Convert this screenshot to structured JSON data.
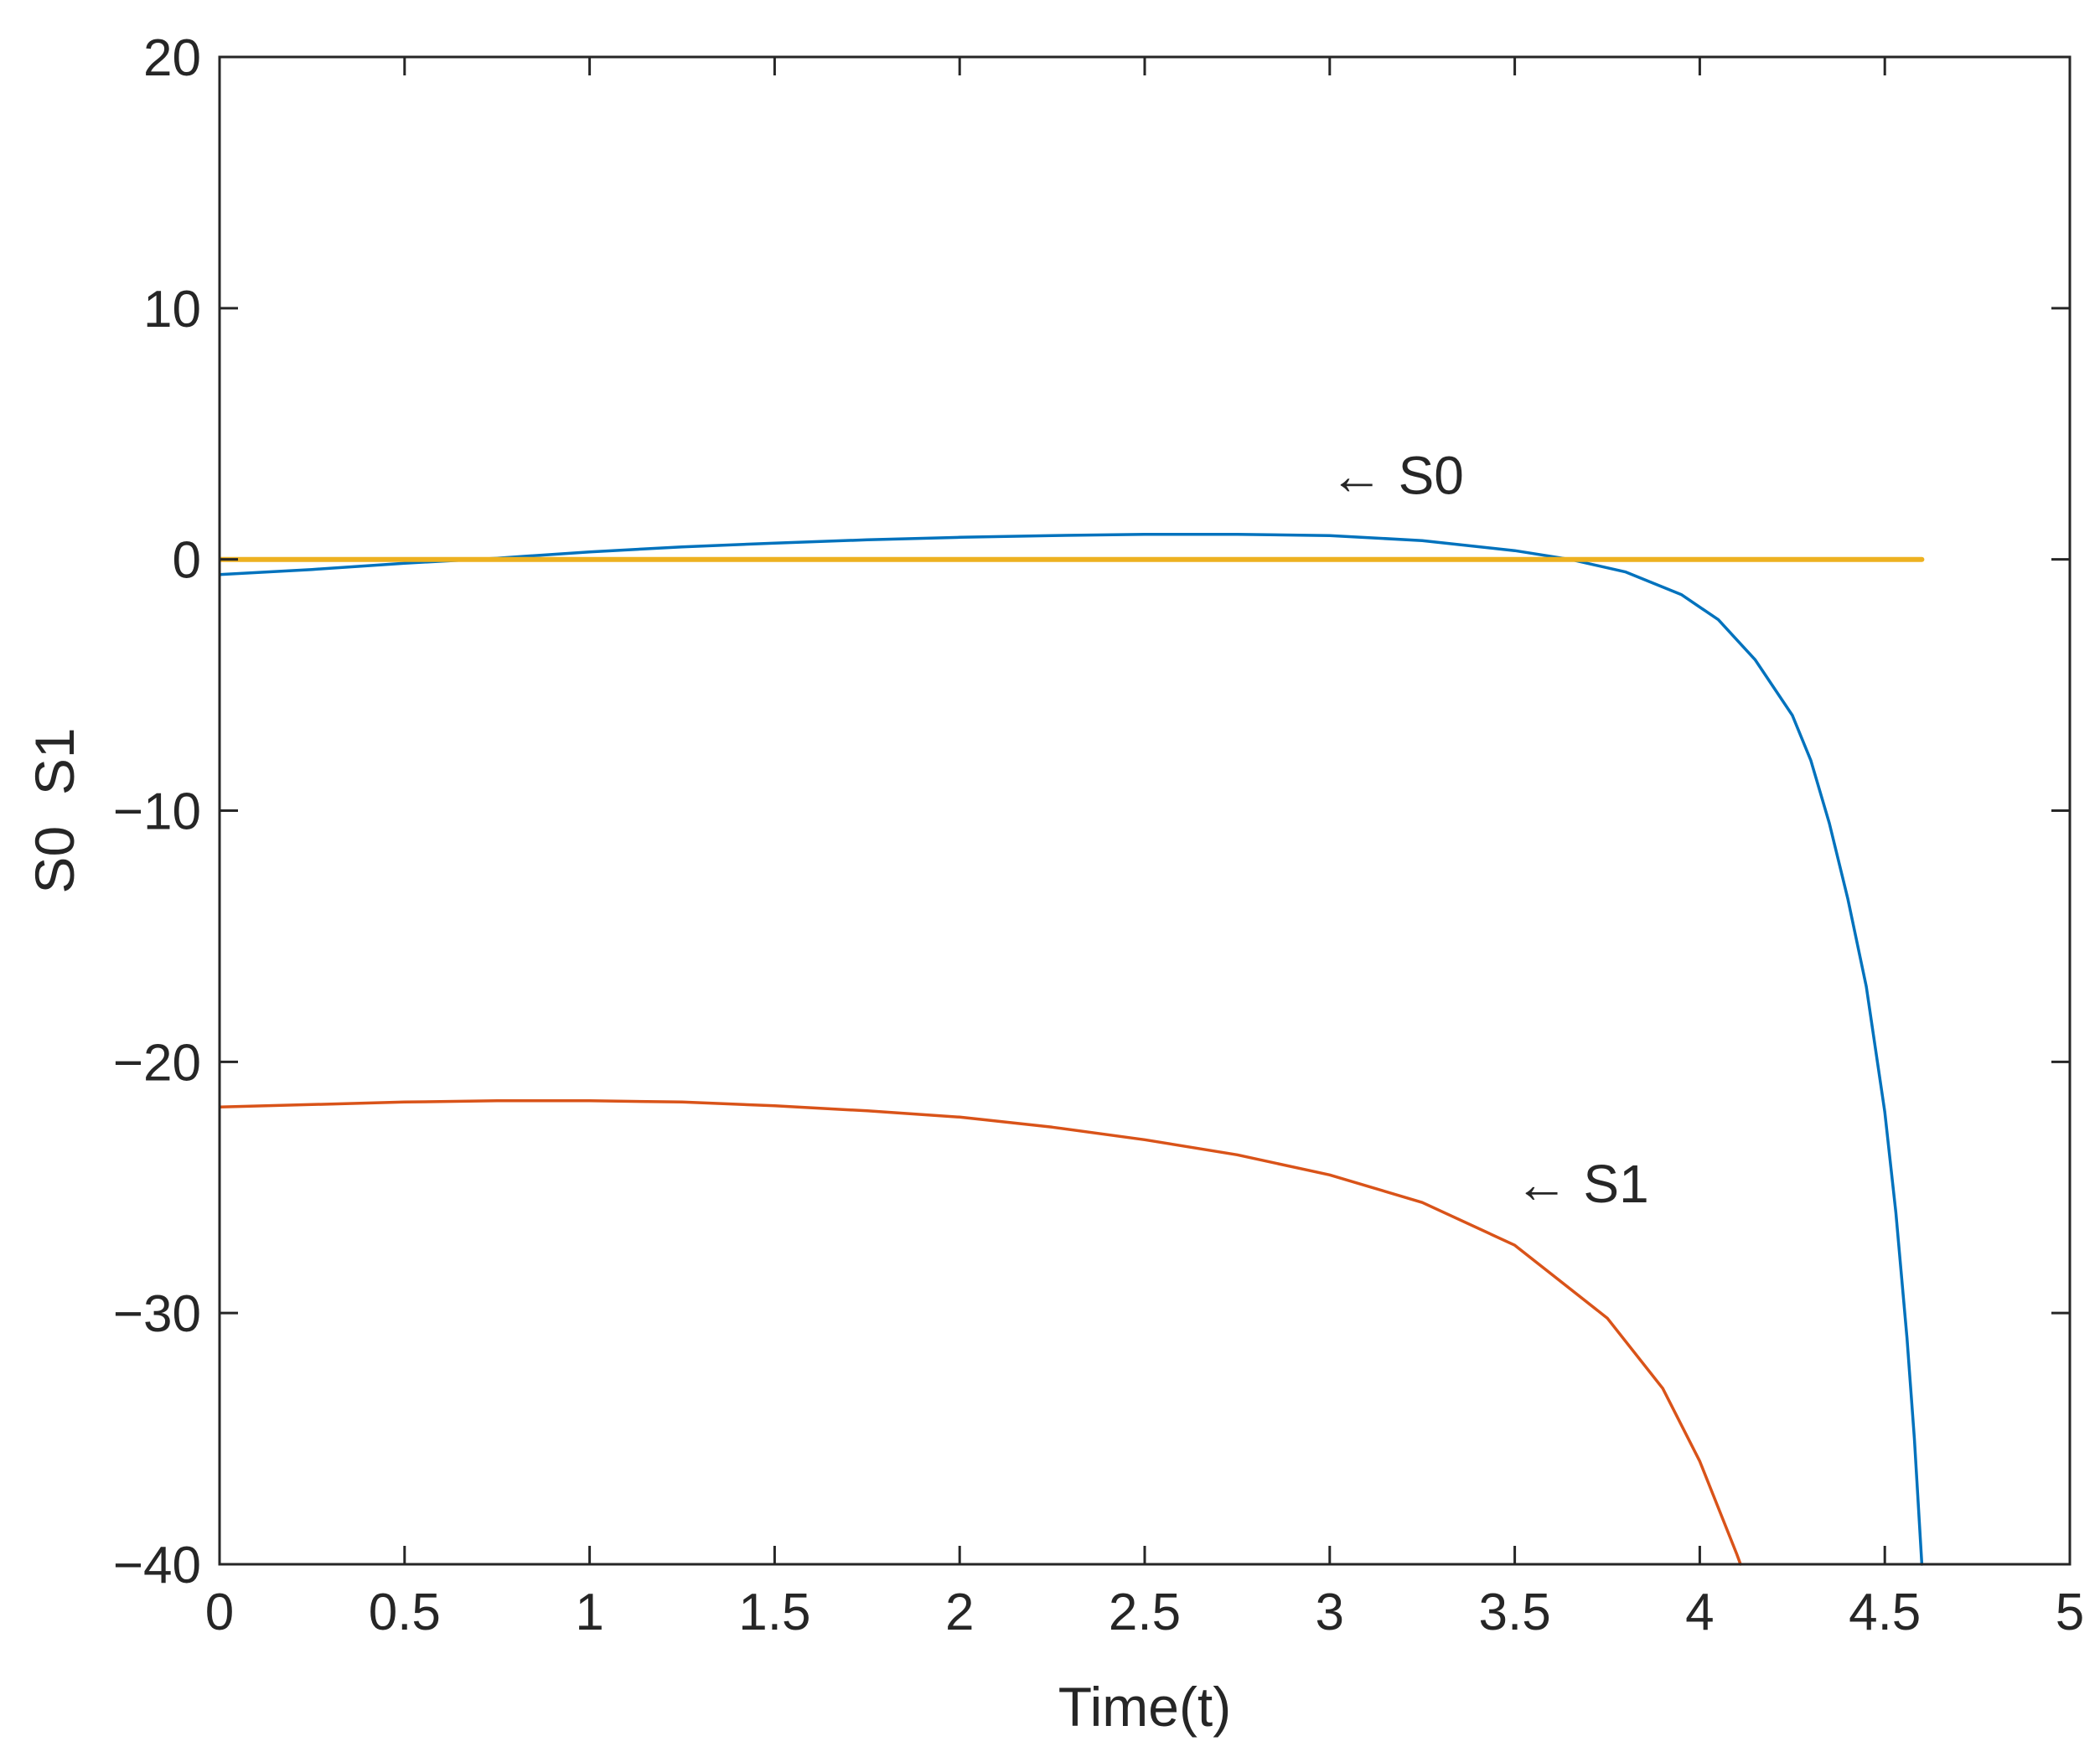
{
  "chart_data": {
    "type": "line",
    "title": "",
    "xlabel": "Time(t)",
    "ylabel": "S0  S1",
    "xlim": [
      0,
      5
    ],
    "ylim": [
      -40,
      20
    ],
    "xticks": [
      0,
      0.5,
      1,
      1.5,
      2,
      2.5,
      3,
      3.5,
      4,
      4.5,
      5
    ],
    "xtick_labels": [
      "0",
      "0.5",
      "1",
      "1.5",
      "2",
      "2.5",
      "3",
      "3.5",
      "4",
      "4.5",
      "5"
    ],
    "yticks": [
      20,
      10,
      0,
      -10,
      -20,
      -30,
      -40
    ],
    "ytick_labels": [
      "20",
      "10",
      "0",
      "−10",
      "−20",
      "−30",
      "−40"
    ],
    "grid": false,
    "box": true,
    "series": [
      {
        "name": "S0",
        "color": "#0072BD",
        "x": [
          0,
          0.25,
          0.5,
          0.75,
          1.0,
          1.25,
          1.5,
          1.75,
          2.0,
          2.25,
          2.5,
          2.75,
          3.0,
          3.25,
          3.5,
          3.65,
          3.8,
          3.95,
          4.05,
          4.15,
          4.25,
          4.3,
          4.35,
          4.4,
          4.45,
          4.5,
          4.53,
          4.56,
          4.58,
          4.6
        ],
        "y": [
          -0.6,
          -0.4,
          -0.15,
          0.05,
          0.3,
          0.5,
          0.65,
          0.78,
          0.88,
          0.95,
          1.0,
          1.0,
          0.95,
          0.75,
          0.35,
          0.0,
          -0.5,
          -1.4,
          -2.4,
          -4.0,
          -6.2,
          -8.0,
          -10.5,
          -13.5,
          -17.0,
          -22.0,
          -26.0,
          -31.0,
          -35.0,
          -40.0
        ]
      },
      {
        "name": "S1",
        "color": "#D95319",
        "x": [
          0,
          0.25,
          0.5,
          0.75,
          1.0,
          1.25,
          1.5,
          1.75,
          2.0,
          2.25,
          2.5,
          2.75,
          3.0,
          3.25,
          3.5,
          3.75,
          3.9,
          4.0,
          4.1,
          4.11
        ],
        "y": [
          -21.8,
          -21.7,
          -21.6,
          -21.55,
          -21.55,
          -21.6,
          -21.75,
          -21.95,
          -22.2,
          -22.6,
          -23.1,
          -23.7,
          -24.5,
          -25.6,
          -27.3,
          -30.2,
          -33.0,
          -35.9,
          -39.6,
          -40.0
        ]
      },
      {
        "name": "",
        "color": "#EDB120",
        "x": [
          0,
          4.6
        ],
        "y": [
          0,
          0
        ]
      }
    ],
    "annotations": [
      {
        "text": "← S0",
        "x": 3.0,
        "y": 2.6
      },
      {
        "text": "← S1",
        "x": 3.5,
        "y": -25.6
      }
    ]
  }
}
